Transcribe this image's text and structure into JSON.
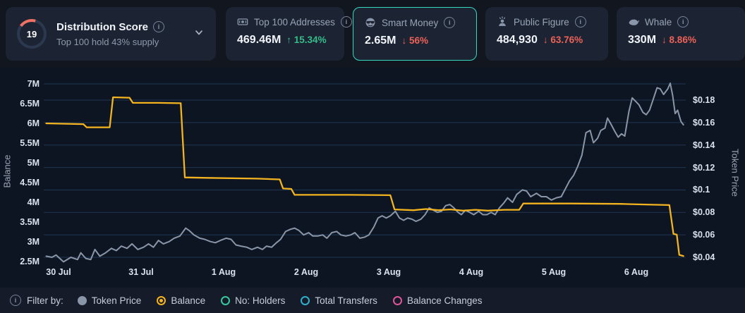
{
  "header": {
    "score": {
      "value": "19",
      "title": "Distribution Score",
      "subtitle": "Top 100 hold 43% supply"
    },
    "cards": [
      {
        "id": "top-100-addresses",
        "icon": "banknote-icon",
        "label": "Top 100 Addresses",
        "value": "469.46M",
        "arrow": "↑",
        "change": "15.34%",
        "direction": "up",
        "selected": false
      },
      {
        "id": "smart-money",
        "icon": "smart-money-icon",
        "label": "Smart Money",
        "value": "2.65M",
        "arrow": "↓",
        "change": "56%",
        "direction": "down",
        "selected": true
      },
      {
        "id": "public-figure",
        "icon": "public-figure-icon",
        "label": "Public Figure",
        "value": "484,930",
        "arrow": "↓",
        "change": "63.76%",
        "direction": "down",
        "selected": false
      },
      {
        "id": "whale",
        "icon": "whale-icon",
        "label": "Whale",
        "value": "330M",
        "arrow": "↓",
        "change": "8.86%",
        "direction": "down",
        "selected": false
      }
    ]
  },
  "chart_data": {
    "type": "line",
    "x_ticks": [
      "30 Jul",
      "31 Jul",
      "1 Aug",
      "2 Aug",
      "3 Aug",
      "4 Aug",
      "5 Aug",
      "6 Aug"
    ],
    "left_axis": {
      "label": "Balance",
      "ticks": [
        "7M",
        "6.5M",
        "6M",
        "5.5M",
        "5M",
        "4.5M",
        "4M",
        "3.5M",
        "3M",
        "2.5M"
      ],
      "max": 7,
      "min": 2.5,
      "step": 0.5,
      "unit": "M"
    },
    "right_axis": {
      "label": "Token Price",
      "ticks": [
        "$0.18",
        "$0.16",
        "$0.14",
        "$0.12",
        "$0.1",
        "$0.08",
        "$0.06",
        "$0.04"
      ],
      "max": 0.18,
      "min": 0.04,
      "step": 0.02,
      "unit": "$"
    },
    "grid": "horizontal-only",
    "series": [
      {
        "name": "Token Price",
        "axis": "right",
        "color": "#8996a8",
        "points": [
          [
            -0.15,
            0.041
          ],
          [
            -0.08,
            0.04
          ],
          [
            -0.03,
            0.042
          ],
          [
            0.06,
            0.036
          ],
          [
            0.15,
            0.04
          ],
          [
            0.23,
            0.038
          ],
          [
            0.27,
            0.044
          ],
          [
            0.33,
            0.039
          ],
          [
            0.39,
            0.038
          ],
          [
            0.44,
            0.047
          ],
          [
            0.5,
            0.041
          ],
          [
            0.57,
            0.044
          ],
          [
            0.64,
            0.048
          ],
          [
            0.7,
            0.046
          ],
          [
            0.76,
            0.05
          ],
          [
            0.83,
            0.048
          ],
          [
            0.89,
            0.052
          ],
          [
            0.96,
            0.047
          ],
          [
            1.03,
            0.049
          ],
          [
            1.09,
            0.052
          ],
          [
            1.15,
            0.049
          ],
          [
            1.21,
            0.055
          ],
          [
            1.27,
            0.052
          ],
          [
            1.34,
            0.054
          ],
          [
            1.4,
            0.057
          ],
          [
            1.47,
            0.059
          ],
          [
            1.54,
            0.066
          ],
          [
            1.58,
            0.064
          ],
          [
            1.64,
            0.06
          ],
          [
            1.71,
            0.057
          ],
          [
            1.77,
            0.056
          ],
          [
            1.84,
            0.054
          ],
          [
            1.9,
            0.053
          ],
          [
            1.96,
            0.055
          ],
          [
            2.03,
            0.057
          ],
          [
            2.09,
            0.056
          ],
          [
            2.15,
            0.051
          ],
          [
            2.21,
            0.05
          ],
          [
            2.28,
            0.049
          ],
          [
            2.34,
            0.047
          ],
          [
            2.41,
            0.049
          ],
          [
            2.47,
            0.047
          ],
          [
            2.52,
            0.05
          ],
          [
            2.58,
            0.049
          ],
          [
            2.64,
            0.053
          ],
          [
            2.69,
            0.056
          ],
          [
            2.75,
            0.063
          ],
          [
            2.81,
            0.065
          ],
          [
            2.86,
            0.066
          ],
          [
            2.91,
            0.064
          ],
          [
            2.97,
            0.06
          ],
          [
            3.03,
            0.062
          ],
          [
            3.08,
            0.059
          ],
          [
            3.14,
            0.059
          ],
          [
            3.2,
            0.06
          ],
          [
            3.25,
            0.057
          ],
          [
            3.31,
            0.062
          ],
          [
            3.37,
            0.063
          ],
          [
            3.42,
            0.06
          ],
          [
            3.48,
            0.059
          ],
          [
            3.54,
            0.06
          ],
          [
            3.59,
            0.062
          ],
          [
            3.65,
            0.057
          ],
          [
            3.71,
            0.058
          ],
          [
            3.76,
            0.06
          ],
          [
            3.82,
            0.067
          ],
          [
            3.87,
            0.075
          ],
          [
            3.92,
            0.077
          ],
          [
            3.97,
            0.075
          ],
          [
            4.02,
            0.077
          ],
          [
            4.08,
            0.081
          ],
          [
            4.13,
            0.075
          ],
          [
            4.18,
            0.073
          ],
          [
            4.23,
            0.075
          ],
          [
            4.28,
            0.074
          ],
          [
            4.33,
            0.072
          ],
          [
            4.39,
            0.074
          ],
          [
            4.44,
            0.078
          ],
          [
            4.49,
            0.084
          ],
          [
            4.54,
            0.082
          ],
          [
            4.59,
            0.08
          ],
          [
            4.64,
            0.081
          ],
          [
            4.69,
            0.086
          ],
          [
            4.74,
            0.087
          ],
          [
            4.79,
            0.084
          ],
          [
            4.84,
            0.08
          ],
          [
            4.88,
            0.078
          ],
          [
            4.93,
            0.082
          ],
          [
            4.98,
            0.08
          ],
          [
            5.03,
            0.078
          ],
          [
            5.09,
            0.081
          ],
          [
            5.14,
            0.078
          ],
          [
            5.19,
            0.078
          ],
          [
            5.24,
            0.08
          ],
          [
            5.29,
            0.078
          ],
          [
            5.34,
            0.084
          ],
          [
            5.39,
            0.088
          ],
          [
            5.44,
            0.093
          ],
          [
            5.5,
            0.089
          ],
          [
            5.55,
            0.096
          ],
          [
            5.62,
            0.1
          ],
          [
            5.67,
            0.099
          ],
          [
            5.72,
            0.094
          ],
          [
            5.79,
            0.097
          ],
          [
            5.85,
            0.094
          ],
          [
            5.91,
            0.094
          ],
          [
            5.97,
            0.091
          ],
          [
            6.03,
            0.093
          ],
          [
            6.09,
            0.094
          ],
          [
            6.14,
            0.101
          ],
          [
            6.19,
            0.108
          ],
          [
            6.24,
            0.113
          ],
          [
            6.29,
            0.121
          ],
          [
            6.34,
            0.131
          ],
          [
            6.39,
            0.151
          ],
          [
            6.44,
            0.153
          ],
          [
            6.48,
            0.142
          ],
          [
            6.53,
            0.146
          ],
          [
            6.57,
            0.153
          ],
          [
            6.62,
            0.155
          ],
          [
            6.65,
            0.164
          ],
          [
            6.69,
            0.159
          ],
          [
            6.74,
            0.152
          ],
          [
            6.78,
            0.147
          ],
          [
            6.82,
            0.15
          ],
          [
            6.86,
            0.148
          ],
          [
            6.91,
            0.17
          ],
          [
            6.95,
            0.182
          ],
          [
            6.99,
            0.179
          ],
          [
            7.03,
            0.176
          ],
          [
            7.08,
            0.169
          ],
          [
            7.12,
            0.167
          ],
          [
            7.16,
            0.171
          ],
          [
            7.21,
            0.182
          ],
          [
            7.25,
            0.191
          ],
          [
            7.29,
            0.19
          ],
          [
            7.33,
            0.185
          ],
          [
            7.38,
            0.19
          ],
          [
            7.41,
            0.195
          ],
          [
            7.44,
            0.184
          ],
          [
            7.47,
            0.168
          ],
          [
            7.5,
            0.171
          ],
          [
            7.54,
            0.161
          ],
          [
            7.57,
            0.158
          ]
        ]
      },
      {
        "name": "Balance",
        "axis": "left",
        "color": "#f4b41f",
        "points": [
          [
            -0.15,
            6.0
          ],
          [
            0.1,
            5.99
          ],
          [
            0.3,
            5.98
          ],
          [
            0.34,
            5.9
          ],
          [
            0.62,
            5.9
          ],
          [
            0.66,
            6.66
          ],
          [
            0.86,
            6.65
          ],
          [
            0.9,
            6.52
          ],
          [
            1.2,
            6.52
          ],
          [
            1.48,
            6.51
          ],
          [
            1.53,
            4.63
          ],
          [
            1.8,
            4.62
          ],
          [
            2.4,
            4.6
          ],
          [
            2.68,
            4.58
          ],
          [
            2.72,
            4.35
          ],
          [
            2.82,
            4.34
          ],
          [
            2.86,
            4.19
          ],
          [
            3.5,
            4.19
          ],
          [
            4.02,
            4.18
          ],
          [
            4.07,
            3.82
          ],
          [
            4.3,
            3.8
          ],
          [
            4.45,
            3.83
          ],
          [
            4.6,
            3.8
          ],
          [
            4.75,
            3.82
          ],
          [
            4.9,
            3.79
          ],
          [
            5.05,
            3.81
          ],
          [
            5.2,
            3.79
          ],
          [
            5.4,
            3.81
          ],
          [
            5.58,
            3.81
          ],
          [
            5.63,
            3.97
          ],
          [
            6.2,
            3.97
          ],
          [
            6.8,
            3.96
          ],
          [
            7.2,
            3.94
          ],
          [
            7.4,
            3.93
          ],
          [
            7.45,
            3.2
          ],
          [
            7.49,
            3.18
          ],
          [
            7.52,
            2.67
          ],
          [
            7.57,
            2.64
          ]
        ]
      }
    ]
  },
  "footer": {
    "filter_label": "Filter by:",
    "legend": [
      {
        "label": "Token Price",
        "color": "#8996a8",
        "style": "filled"
      },
      {
        "label": "Balance",
        "color": "#f4b41f",
        "style": "dot-ring"
      },
      {
        "label": "No: Holders",
        "color": "#36c89e",
        "style": "ring"
      },
      {
        "label": "Total Transfers",
        "color": "#2fb0cb",
        "style": "ring"
      },
      {
        "label": "Balance Changes",
        "color": "#e0559a",
        "style": "ring"
      }
    ]
  },
  "colors": {
    "positive": "#34bd8a",
    "negative": "#ee6157",
    "balance_line": "#f4b41f",
    "price_line": "#8996a8",
    "accent_teal": "#35d9c0",
    "score_arc": "#ef7163",
    "grid": "rgba(77,124,185,0.33)"
  }
}
